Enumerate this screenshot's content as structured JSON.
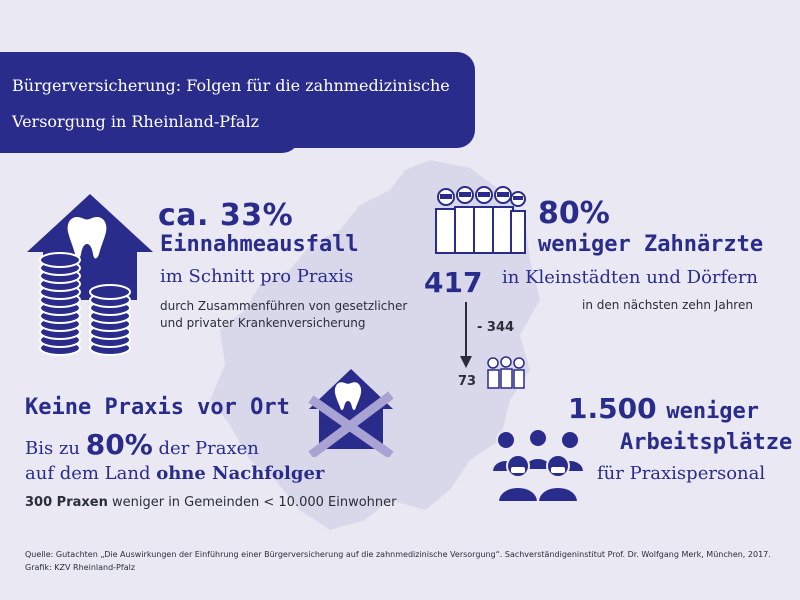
{
  "title": {
    "line1": "Bürgerversicherung: Folgen für die zahnmedizinische",
    "line2": "Versorgung in Rheinland-Pfalz"
  },
  "income": {
    "stat": "ca. 33%",
    "headline": "Einnahmeausfall",
    "sub": "im Schnitt pro Praxis",
    "detail1": "durch Zusammenführen von gesetzlicher",
    "detail2": "und privater Krankenversicherung"
  },
  "dentists": {
    "stat": "80%",
    "headline": "weniger Zahnärzte",
    "from_count": "417",
    "sub": "in Kleinstädten und Dörfern",
    "detail": "in den nächsten zehn Jahren",
    "difference": "- 344",
    "to_count": "73"
  },
  "practice": {
    "headline": "Keine Praxis vor Ort",
    "bis_prefix": "Bis zu",
    "bis_value": "80%",
    "bis_suffix": "der Praxen",
    "land_prefix": "auf dem Land",
    "land_bold": "ohne Nachfolger",
    "count_bold": "300 Praxen",
    "count_rest": "weniger in Gemeinden < 10.000 Einwohner"
  },
  "jobs": {
    "stat": "1.500",
    "stat_word": "weniger",
    "headline": "Arbeitsplätze",
    "sub": "für Praxispersonal"
  },
  "source": {
    "line1": "Quelle: Gutachten „Die Auswirkungen der Einführung einer Bürgerversicherung auf die zahnmedizinische Versorgung“. Sachverständigeninstitut Prof. Dr. Wolfgang Merk, München, 2017.",
    "line2": "Grafik: KZV Rheinland-Pfalz"
  },
  "colors": {
    "primary": "#2a2c8c",
    "background": "#e9e8f3",
    "map": "#d9d8ea",
    "cross": "#a9a3d4"
  },
  "icons": [
    "house-tooth-icon",
    "coin-stack-icon",
    "dentist-group-icon",
    "down-arrow-icon",
    "house-crossed-icon",
    "people-masks-icon"
  ]
}
